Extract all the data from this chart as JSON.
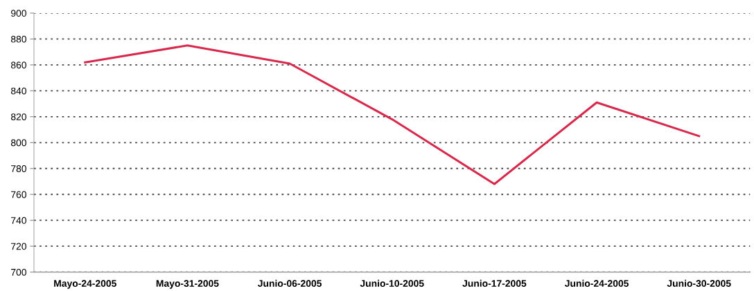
{
  "chart_data": {
    "type": "line",
    "categories": [
      "Mayo-24-2005",
      "Mayo-31-2005",
      "Junio-06-2005",
      "Junio-10-2005",
      "Junio-17-2005",
      "Junio-24-2005",
      "Junio-30-2005"
    ],
    "series": [
      {
        "color": "#d8284c",
        "values": [
          862,
          875,
          861,
          818,
          768,
          831,
          805
        ]
      }
    ],
    "ylim": [
      700,
      900
    ],
    "yticks": [
      700,
      720,
      740,
      760,
      780,
      800,
      820,
      840,
      860,
      880,
      900
    ],
    "grid": "y",
    "legend": false,
    "marker": "none",
    "line_style": "solid"
  }
}
